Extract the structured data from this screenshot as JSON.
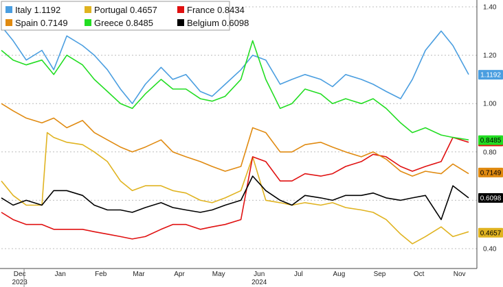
{
  "chart_data": {
    "type": "line",
    "title": "",
    "xlabel": "",
    "ylabel": "",
    "ylim": [
      0.3,
      1.42
    ],
    "grid": "horizontal dashed",
    "legend_position": "top-left",
    "yticks": [
      0.4,
      0.6,
      0.8,
      1.0,
      1.2,
      1.4
    ],
    "ytick_labels": [
      "0.40",
      "0.60",
      "0.80",
      "1.00",
      "1.20",
      "1.40"
    ],
    "x_range": [
      "2023-12-01",
      "2024-11-22"
    ],
    "x_ticks": [
      {
        "label": "Dec",
        "date": "2023-12-15"
      },
      {
        "label": "Jan",
        "date": "2024-01-15"
      },
      {
        "label": "Feb",
        "date": "2024-02-15"
      },
      {
        "label": "Mar",
        "date": "2024-03-15"
      },
      {
        "label": "Apr",
        "date": "2024-04-15"
      },
      {
        "label": "May",
        "date": "2024-05-15"
      },
      {
        "label": "Jun",
        "date": "2024-06-15"
      },
      {
        "label": "Jul",
        "date": "2024-07-15"
      },
      {
        "label": "Aug",
        "date": "2024-08-15"
      },
      {
        "label": "Sep",
        "date": "2024-09-15"
      },
      {
        "label": "Oct",
        "date": "2024-10-15"
      },
      {
        "label": "Nov",
        "date": "2024-11-15"
      }
    ],
    "year_labels": [
      {
        "label": "2023",
        "date": "2023-12-15"
      },
      {
        "label": "2024",
        "date": "2024-06-15"
      }
    ],
    "series": [
      {
        "name": "Italy",
        "last": "1.1192",
        "color": "#4a9ee0",
        "points": [
          [
            "2023-12-01",
            1.32
          ],
          [
            "2023-12-10",
            1.26
          ],
          [
            "2023-12-20",
            1.18
          ],
          [
            "2024-01-01",
            1.22
          ],
          [
            "2024-01-10",
            1.14
          ],
          [
            "2024-01-20",
            1.28
          ],
          [
            "2024-02-01",
            1.24
          ],
          [
            "2024-02-10",
            1.2
          ],
          [
            "2024-02-20",
            1.14
          ],
          [
            "2024-03-01",
            1.06
          ],
          [
            "2024-03-10",
            1.0
          ],
          [
            "2024-03-20",
            1.08
          ],
          [
            "2024-04-01",
            1.15
          ],
          [
            "2024-04-10",
            1.1
          ],
          [
            "2024-04-20",
            1.12
          ],
          [
            "2024-05-01",
            1.05
          ],
          [
            "2024-05-10",
            1.03
          ],
          [
            "2024-05-20",
            1.08
          ],
          [
            "2024-06-01",
            1.14
          ],
          [
            "2024-06-10",
            1.2
          ],
          [
            "2024-06-20",
            1.18
          ],
          [
            "2024-07-01",
            1.08
          ],
          [
            "2024-07-10",
            1.1
          ],
          [
            "2024-07-20",
            1.12
          ],
          [
            "2024-08-01",
            1.1
          ],
          [
            "2024-08-10",
            1.07
          ],
          [
            "2024-08-20",
            1.12
          ],
          [
            "2024-09-01",
            1.1
          ],
          [
            "2024-09-10",
            1.08
          ],
          [
            "2024-09-20",
            1.05
          ],
          [
            "2024-10-01",
            1.02
          ],
          [
            "2024-10-10",
            1.1
          ],
          [
            "2024-10-20",
            1.22
          ],
          [
            "2024-11-01",
            1.3
          ],
          [
            "2024-11-10",
            1.24
          ],
          [
            "2024-11-22",
            1.12
          ]
        ]
      },
      {
        "name": "Portugal",
        "last": "0.4657",
        "color": "#e0b320",
        "points": [
          [
            "2023-12-01",
            0.68
          ],
          [
            "2023-12-10",
            0.62
          ],
          [
            "2023-12-20",
            0.58
          ],
          [
            "2024-01-01",
            0.58
          ],
          [
            "2024-01-05",
            0.88
          ],
          [
            "2024-01-10",
            0.86
          ],
          [
            "2024-01-20",
            0.84
          ],
          [
            "2024-02-01",
            0.83
          ],
          [
            "2024-02-10",
            0.8
          ],
          [
            "2024-02-20",
            0.76
          ],
          [
            "2024-03-01",
            0.68
          ],
          [
            "2024-03-10",
            0.64
          ],
          [
            "2024-03-20",
            0.66
          ],
          [
            "2024-04-01",
            0.66
          ],
          [
            "2024-04-10",
            0.64
          ],
          [
            "2024-04-20",
            0.63
          ],
          [
            "2024-05-01",
            0.6
          ],
          [
            "2024-05-10",
            0.59
          ],
          [
            "2024-05-20",
            0.61
          ],
          [
            "2024-06-01",
            0.64
          ],
          [
            "2024-06-10",
            0.78
          ],
          [
            "2024-06-20",
            0.6
          ],
          [
            "2024-07-01",
            0.59
          ],
          [
            "2024-07-10",
            0.58
          ],
          [
            "2024-07-20",
            0.59
          ],
          [
            "2024-08-01",
            0.58
          ],
          [
            "2024-08-10",
            0.59
          ],
          [
            "2024-08-20",
            0.57
          ],
          [
            "2024-09-01",
            0.56
          ],
          [
            "2024-09-10",
            0.55
          ],
          [
            "2024-09-20",
            0.52
          ],
          [
            "2024-10-01",
            0.46
          ],
          [
            "2024-10-10",
            0.42
          ],
          [
            "2024-10-20",
            0.45
          ],
          [
            "2024-11-01",
            0.49
          ],
          [
            "2024-11-10",
            0.45
          ],
          [
            "2024-11-22",
            0.47
          ]
        ]
      },
      {
        "name": "France",
        "last": "0.8434",
        "color": "#e01010",
        "points": [
          [
            "2023-12-01",
            0.55
          ],
          [
            "2023-12-10",
            0.52
          ],
          [
            "2023-12-20",
            0.5
          ],
          [
            "2024-01-01",
            0.5
          ],
          [
            "2024-01-10",
            0.48
          ],
          [
            "2024-01-20",
            0.48
          ],
          [
            "2024-02-01",
            0.48
          ],
          [
            "2024-02-10",
            0.47
          ],
          [
            "2024-02-20",
            0.46
          ],
          [
            "2024-03-01",
            0.45
          ],
          [
            "2024-03-10",
            0.44
          ],
          [
            "2024-03-20",
            0.45
          ],
          [
            "2024-04-01",
            0.48
          ],
          [
            "2024-04-10",
            0.5
          ],
          [
            "2024-04-20",
            0.5
          ],
          [
            "2024-05-01",
            0.48
          ],
          [
            "2024-05-10",
            0.49
          ],
          [
            "2024-05-20",
            0.5
          ],
          [
            "2024-06-01",
            0.52
          ],
          [
            "2024-06-10",
            0.78
          ],
          [
            "2024-06-20",
            0.76
          ],
          [
            "2024-07-01",
            0.68
          ],
          [
            "2024-07-10",
            0.68
          ],
          [
            "2024-07-20",
            0.71
          ],
          [
            "2024-08-01",
            0.7
          ],
          [
            "2024-08-10",
            0.71
          ],
          [
            "2024-08-20",
            0.74
          ],
          [
            "2024-09-01",
            0.76
          ],
          [
            "2024-09-10",
            0.79
          ],
          [
            "2024-09-20",
            0.78
          ],
          [
            "2024-10-01",
            0.74
          ],
          [
            "2024-10-10",
            0.72
          ],
          [
            "2024-10-20",
            0.74
          ],
          [
            "2024-11-01",
            0.76
          ],
          [
            "2024-11-10",
            0.86
          ],
          [
            "2024-11-22",
            0.84
          ]
        ]
      },
      {
        "name": "Belgium",
        "last": "0.6098",
        "color": "#000000",
        "points": [
          [
            "2023-12-01",
            0.61
          ],
          [
            "2023-12-10",
            0.58
          ],
          [
            "2023-12-20",
            0.6
          ],
          [
            "2024-01-01",
            0.58
          ],
          [
            "2024-01-10",
            0.64
          ],
          [
            "2024-01-20",
            0.64
          ],
          [
            "2024-02-01",
            0.62
          ],
          [
            "2024-02-10",
            0.58
          ],
          [
            "2024-02-20",
            0.56
          ],
          [
            "2024-03-01",
            0.56
          ],
          [
            "2024-03-10",
            0.55
          ],
          [
            "2024-03-20",
            0.57
          ],
          [
            "2024-04-01",
            0.59
          ],
          [
            "2024-04-10",
            0.57
          ],
          [
            "2024-04-20",
            0.56
          ],
          [
            "2024-05-01",
            0.55
          ],
          [
            "2024-05-10",
            0.56
          ],
          [
            "2024-05-20",
            0.58
          ],
          [
            "2024-06-01",
            0.6
          ],
          [
            "2024-06-10",
            0.7
          ],
          [
            "2024-06-20",
            0.64
          ],
          [
            "2024-07-01",
            0.6
          ],
          [
            "2024-07-10",
            0.58
          ],
          [
            "2024-07-20",
            0.62
          ],
          [
            "2024-08-01",
            0.61
          ],
          [
            "2024-08-10",
            0.6
          ],
          [
            "2024-08-20",
            0.62
          ],
          [
            "2024-09-01",
            0.62
          ],
          [
            "2024-09-10",
            0.63
          ],
          [
            "2024-09-20",
            0.61
          ],
          [
            "2024-10-01",
            0.6
          ],
          [
            "2024-10-10",
            0.61
          ],
          [
            "2024-10-20",
            0.62
          ],
          [
            "2024-11-01",
            0.52
          ],
          [
            "2024-11-10",
            0.66
          ],
          [
            "2024-11-22",
            0.61
          ]
        ]
      },
      {
        "name": "Spain",
        "last": "0.7149",
        "color": "#e08a10",
        "points": [
          [
            "2023-12-01",
            1.0
          ],
          [
            "2023-12-10",
            0.97
          ],
          [
            "2023-12-20",
            0.94
          ],
          [
            "2024-01-01",
            0.92
          ],
          [
            "2024-01-10",
            0.94
          ],
          [
            "2024-01-20",
            0.9
          ],
          [
            "2024-02-01",
            0.93
          ],
          [
            "2024-02-10",
            0.88
          ],
          [
            "2024-02-20",
            0.85
          ],
          [
            "2024-03-01",
            0.82
          ],
          [
            "2024-03-10",
            0.8
          ],
          [
            "2024-03-20",
            0.82
          ],
          [
            "2024-04-01",
            0.85
          ],
          [
            "2024-04-10",
            0.8
          ],
          [
            "2024-04-20",
            0.78
          ],
          [
            "2024-05-01",
            0.76
          ],
          [
            "2024-05-10",
            0.74
          ],
          [
            "2024-05-20",
            0.72
          ],
          [
            "2024-06-01",
            0.74
          ],
          [
            "2024-06-10",
            0.9
          ],
          [
            "2024-06-20",
            0.88
          ],
          [
            "2024-07-01",
            0.8
          ],
          [
            "2024-07-10",
            0.8
          ],
          [
            "2024-07-20",
            0.83
          ],
          [
            "2024-08-01",
            0.84
          ],
          [
            "2024-08-10",
            0.82
          ],
          [
            "2024-08-20",
            0.8
          ],
          [
            "2024-09-01",
            0.78
          ],
          [
            "2024-09-10",
            0.8
          ],
          [
            "2024-09-20",
            0.77
          ],
          [
            "2024-10-01",
            0.72
          ],
          [
            "2024-10-10",
            0.7
          ],
          [
            "2024-10-20",
            0.72
          ],
          [
            "2024-11-01",
            0.71
          ],
          [
            "2024-11-10",
            0.75
          ],
          [
            "2024-11-22",
            0.71
          ]
        ]
      },
      {
        "name": "Greece",
        "last": "0.8485",
        "color": "#22dd22",
        "points": [
          [
            "2023-12-01",
            1.22
          ],
          [
            "2023-12-10",
            1.18
          ],
          [
            "2023-12-20",
            1.16
          ],
          [
            "2024-01-01",
            1.18
          ],
          [
            "2024-01-10",
            1.12
          ],
          [
            "2024-01-20",
            1.2
          ],
          [
            "2024-02-01",
            1.16
          ],
          [
            "2024-02-10",
            1.1
          ],
          [
            "2024-02-20",
            1.05
          ],
          [
            "2024-03-01",
            1.0
          ],
          [
            "2024-03-10",
            0.98
          ],
          [
            "2024-03-20",
            1.04
          ],
          [
            "2024-04-01",
            1.1
          ],
          [
            "2024-04-10",
            1.06
          ],
          [
            "2024-04-20",
            1.06
          ],
          [
            "2024-05-01",
            1.02
          ],
          [
            "2024-05-10",
            1.01
          ],
          [
            "2024-05-20",
            1.03
          ],
          [
            "2024-06-01",
            1.1
          ],
          [
            "2024-06-10",
            1.26
          ],
          [
            "2024-06-20",
            1.1
          ],
          [
            "2024-07-01",
            0.98
          ],
          [
            "2024-07-10",
            1.0
          ],
          [
            "2024-07-20",
            1.06
          ],
          [
            "2024-08-01",
            1.04
          ],
          [
            "2024-08-10",
            1.0
          ],
          [
            "2024-08-20",
            1.02
          ],
          [
            "2024-09-01",
            1.0
          ],
          [
            "2024-09-10",
            1.02
          ],
          [
            "2024-09-20",
            0.98
          ],
          [
            "2024-10-01",
            0.92
          ],
          [
            "2024-10-10",
            0.88
          ],
          [
            "2024-10-20",
            0.9
          ],
          [
            "2024-11-01",
            0.87
          ],
          [
            "2024-11-10",
            0.86
          ],
          [
            "2024-11-22",
            0.85
          ]
        ]
      }
    ]
  }
}
